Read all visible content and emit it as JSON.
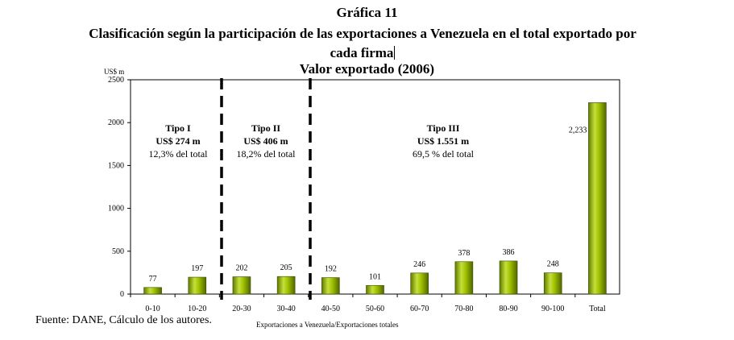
{
  "header": {
    "title_line1": "Gráfica 11",
    "title_line2": "Clasificación según la participación de las exportaciones a Venezuela en el total exportado por",
    "title_line3": "cada firma",
    "title_line4": "Valor exportado (2006)"
  },
  "chart_data": {
    "type": "bar",
    "title": "Valor exportado (2006)",
    "ylabel": "US$ m",
    "xlabel": "Exportaciones a Venezuela/Exportaciones totales",
    "ylim": [
      0,
      2500
    ],
    "yticks": [
      "0",
      "500",
      "1000",
      "1500",
      "2000",
      "2500"
    ],
    "categories": [
      "0-10",
      "10-20",
      "20-30",
      "30-40",
      "40-50",
      "50-60",
      "60-70",
      "70-80",
      "80-90",
      "90-100",
      "Total"
    ],
    "values": [
      77,
      197,
      202,
      205,
      192,
      101,
      246,
      378,
      386,
      248,
      2233
    ],
    "value_labels": [
      "77",
      "197",
      "202",
      "205",
      "192",
      "101",
      "246",
      "378",
      "386",
      "248",
      "2,233"
    ],
    "groups": [
      {
        "name": "Tipo I",
        "value": "US$ 274 m",
        "share": "12,3% del total"
      },
      {
        "name": "Tipo II",
        "value": "US$ 406 m",
        "share": "18,2% del total"
      },
      {
        "name": "Tipo III",
        "value": "US$ 1.551 m",
        "share": "69,5 % del total"
      }
    ],
    "bar_color": "#8fb000"
  },
  "footer": {
    "source": "Fuente: DANE, Cálculo de los autores."
  }
}
